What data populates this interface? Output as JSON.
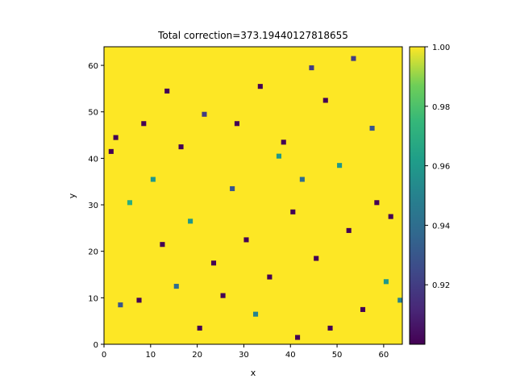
{
  "chart_data": {
    "type": "heatmap",
    "title": "Total correction=373.19440127818655",
    "xlabel": "x",
    "ylabel": "y",
    "grid": false,
    "x_range": [
      0,
      64
    ],
    "y_range": [
      0,
      64
    ],
    "grid_shape": [
      64,
      64
    ],
    "x_ticks": [
      "0",
      "10",
      "20",
      "30",
      "40",
      "50",
      "60"
    ],
    "y_ticks": [
      "0",
      "10",
      "20",
      "30",
      "40",
      "50",
      "60"
    ],
    "colorbar": {
      "colormap": "viridis",
      "range": [
        0.9,
        1.0
      ],
      "ticks": [
        "0.92",
        "0.94",
        "0.96",
        "0.98",
        "1.00"
      ],
      "placement": "right"
    },
    "summary": "64x64 field of values between ~0.90 and 1.00; most cells at 1.00 (yellow), scattered cells at lower values (green, teal, dark purple)",
    "base_value": 1.0,
    "low_value_cells": [
      {
        "x": 1,
        "y": 41,
        "v": 0.9
      },
      {
        "x": 2,
        "y": 44,
        "v": 0.9
      },
      {
        "x": 3,
        "y": 8,
        "v": 0.93
      },
      {
        "x": 5,
        "y": 30,
        "v": 0.97
      },
      {
        "x": 7,
        "y": 9,
        "v": 0.9
      },
      {
        "x": 8,
        "y": 47,
        "v": 0.9
      },
      {
        "x": 10,
        "y": 35,
        "v": 0.96
      },
      {
        "x": 12,
        "y": 21,
        "v": 0.9
      },
      {
        "x": 13,
        "y": 54,
        "v": 0.9
      },
      {
        "x": 15,
        "y": 12,
        "v": 0.94
      },
      {
        "x": 16,
        "y": 42,
        "v": 0.9
      },
      {
        "x": 18,
        "y": 26,
        "v": 0.96
      },
      {
        "x": 20,
        "y": 3,
        "v": 0.9
      },
      {
        "x": 21,
        "y": 49,
        "v": 0.92
      },
      {
        "x": 23,
        "y": 17,
        "v": 0.9
      },
      {
        "x": 25,
        "y": 10,
        "v": 0.9
      },
      {
        "x": 27,
        "y": 33,
        "v": 0.93
      },
      {
        "x": 28,
        "y": 47,
        "v": 0.9
      },
      {
        "x": 30,
        "y": 22,
        "v": 0.9
      },
      {
        "x": 32,
        "y": 6,
        "v": 0.95
      },
      {
        "x": 33,
        "y": 55,
        "v": 0.9
      },
      {
        "x": 35,
        "y": 14,
        "v": 0.9
      },
      {
        "x": 37,
        "y": 40,
        "v": 0.96
      },
      {
        "x": 38,
        "y": 43,
        "v": 0.9
      },
      {
        "x": 40,
        "y": 28,
        "v": 0.9
      },
      {
        "x": 41,
        "y": 1,
        "v": 0.9
      },
      {
        "x": 42,
        "y": 35,
        "v": 0.94
      },
      {
        "x": 44,
        "y": 59,
        "v": 0.92
      },
      {
        "x": 45,
        "y": 18,
        "v": 0.9
      },
      {
        "x": 47,
        "y": 52,
        "v": 0.9
      },
      {
        "x": 48,
        "y": 3,
        "v": 0.9
      },
      {
        "x": 50,
        "y": 38,
        "v": 0.96
      },
      {
        "x": 52,
        "y": 24,
        "v": 0.9
      },
      {
        "x": 53,
        "y": 61,
        "v": 0.92
      },
      {
        "x": 55,
        "y": 7,
        "v": 0.9
      },
      {
        "x": 57,
        "y": 46,
        "v": 0.93
      },
      {
        "x": 58,
        "y": 30,
        "v": 0.9
      },
      {
        "x": 60,
        "y": 13,
        "v": 0.96
      },
      {
        "x": 61,
        "y": 27,
        "v": 0.9
      },
      {
        "x": 63,
        "y": 9,
        "v": 0.95
      }
    ]
  }
}
